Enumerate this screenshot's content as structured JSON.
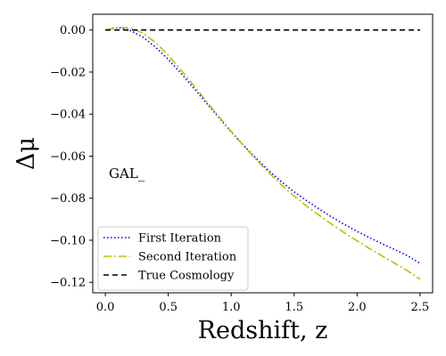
{
  "chart_data": {
    "type": "line",
    "xlabel": "Redshift, z",
    "ylabel": "Δμ",
    "annotation": "GAL_",
    "xlim": [
      -0.1,
      2.6
    ],
    "ylim": [
      -0.125,
      0.0075
    ],
    "xticks": [
      0.0,
      0.5,
      1.0,
      1.5,
      2.0,
      2.5
    ],
    "xtick_labels": [
      "0.0",
      "0.5",
      "1.0",
      "1.5",
      "2.0",
      "2.5"
    ],
    "yticks": [
      0.0,
      -0.02,
      -0.04,
      -0.06,
      -0.08,
      -0.1,
      -0.12
    ],
    "ytick_labels": [
      "0.00",
      "−0.02",
      "−0.04",
      "−0.06",
      "−0.08",
      "−0.10",
      "−0.12"
    ],
    "grid": false,
    "legend_position": "lower-left",
    "series": [
      {
        "name": "First Iteration",
        "color": "#0000ff",
        "style": "dotted",
        "x": [
          0.0,
          0.1,
          0.2,
          0.3,
          0.4,
          0.5,
          0.6,
          0.7,
          0.8,
          0.9,
          1.0,
          1.1,
          1.2,
          1.3,
          1.4,
          1.5,
          1.6,
          1.7,
          1.8,
          1.9,
          2.0,
          2.1,
          2.2,
          2.3,
          2.4,
          2.5
        ],
        "y": [
          0.0,
          0.0012,
          -0.0003,
          -0.0035,
          -0.0082,
          -0.014,
          -0.0205,
          -0.0275,
          -0.0345,
          -0.0415,
          -0.0485,
          -0.055,
          -0.0612,
          -0.067,
          -0.0722,
          -0.077,
          -0.0812,
          -0.0852,
          -0.089,
          -0.0925,
          -0.0958,
          -0.0988,
          -0.1017,
          -0.1045,
          -0.1073,
          -0.111
        ]
      },
      {
        "name": "Second Iteration",
        "color": "#bfbf00",
        "style": "dashdot",
        "x": [
          0.0,
          0.1,
          0.2,
          0.3,
          0.4,
          0.5,
          0.6,
          0.7,
          0.8,
          0.9,
          1.0,
          1.1,
          1.2,
          1.3,
          1.4,
          1.5,
          1.6,
          1.7,
          1.8,
          1.9,
          2.0,
          2.1,
          2.2,
          2.3,
          2.4,
          2.5
        ],
        "y": [
          0.0,
          0.0013,
          0.001,
          -0.0015,
          -0.006,
          -0.012,
          -0.019,
          -0.0262,
          -0.0337,
          -0.041,
          -0.0482,
          -0.0552,
          -0.0618,
          -0.068,
          -0.0737,
          -0.079,
          -0.0838,
          -0.0882,
          -0.0925,
          -0.0965,
          -0.1003,
          -0.104,
          -0.1075,
          -0.111,
          -0.1145,
          -0.1185
        ]
      },
      {
        "name": "True Cosmology",
        "color": "#000000",
        "style": "dashed",
        "x": [
          0.0,
          2.5
        ],
        "y": [
          0.0,
          0.0
        ]
      }
    ]
  }
}
